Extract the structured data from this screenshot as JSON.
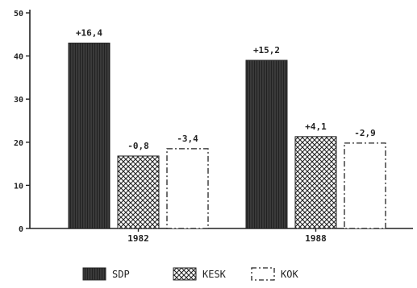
{
  "chart_data": {
    "type": "bar",
    "title": "",
    "xlabel": "",
    "ylabel": "",
    "ylim": [
      0,
      50
    ],
    "yticks": [
      0,
      10,
      20,
      30,
      40,
      50
    ],
    "grid": false,
    "legend_position": "bottom",
    "categories": [
      "1982",
      "1988"
    ],
    "series": [
      {
        "name": "SDP",
        "values": [
          43,
          39
        ],
        "labels": [
          "+16,4",
          "+15,2"
        ],
        "style": "dark-hatch",
        "color": "#2a2a2a"
      },
      {
        "name": "KESK",
        "values": [
          16.8,
          21.3
        ],
        "labels": [
          "-0,8",
          "+4,1"
        ],
        "style": "crosshatch",
        "color": "#333333"
      },
      {
        "name": "KOK",
        "values": [
          18.5,
          19.8
        ],
        "labels": [
          "-3,4",
          "-2,9"
        ],
        "style": "dash-dot-outline",
        "color": "#222222"
      }
    ]
  }
}
